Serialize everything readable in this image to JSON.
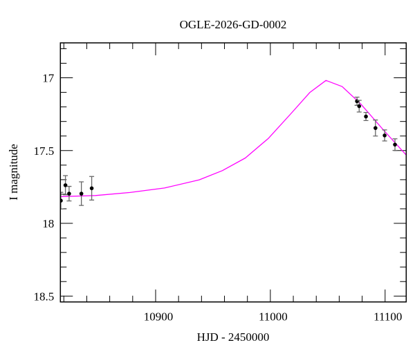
{
  "chart_data": {
    "type": "scatter",
    "title": "OGLE-2026-GD-0002",
    "xlabel": "HJD - 2450000",
    "ylabel": "I magnitude",
    "xlim": [
      10817.0,
      11118.4
    ],
    "ylim": [
      18.54,
      16.76
    ],
    "y_inverted": true,
    "grid": false,
    "x_ticks": [
      10900,
      11000,
      11100
    ],
    "x_tick_labels": [
      "10900",
      "11000",
      "11100"
    ],
    "x_minor_step": 20,
    "y_ticks": [
      17,
      17.5,
      18,
      18.5
    ],
    "y_tick_labels": [
      "17",
      "17.5",
      "18",
      "18.5"
    ],
    "y_minor_step": 0.1,
    "colors": {
      "points": "#000000",
      "errorbars": "#666666",
      "model": "#ff00ff",
      "axes": "#000000"
    },
    "series": [
      {
        "kind": "points_with_errorbars",
        "x": [
          10817.4,
          10821.4,
          10824.6,
          10835.3,
          10844.3,
          11075.5,
          11077.4,
          11083.3,
          11091.6,
          11099.6,
          11108.6
        ],
        "y": [
          17.844,
          17.738,
          17.796,
          17.796,
          17.759,
          17.161,
          17.195,
          17.266,
          17.345,
          17.396,
          17.459
        ],
        "yerr": [
          0.057,
          0.066,
          0.05,
          0.081,
          0.081,
          0.028,
          0.04,
          0.028,
          0.055,
          0.038,
          0.04
        ]
      },
      {
        "kind": "model_line",
        "x": [
          10817.4,
          10847.5,
          10877.7,
          10907.8,
          10938.0,
          10958.1,
          10978.2,
          10998.3,
          11018.4,
          11034.5,
          11048.5,
          11062.6,
          11078.7,
          11098.8,
          11118.9
        ],
        "y": [
          17.816,
          17.809,
          17.788,
          17.757,
          17.701,
          17.638,
          17.551,
          17.416,
          17.242,
          17.1,
          17.018,
          17.06,
          17.179,
          17.361,
          17.535
        ]
      }
    ]
  }
}
